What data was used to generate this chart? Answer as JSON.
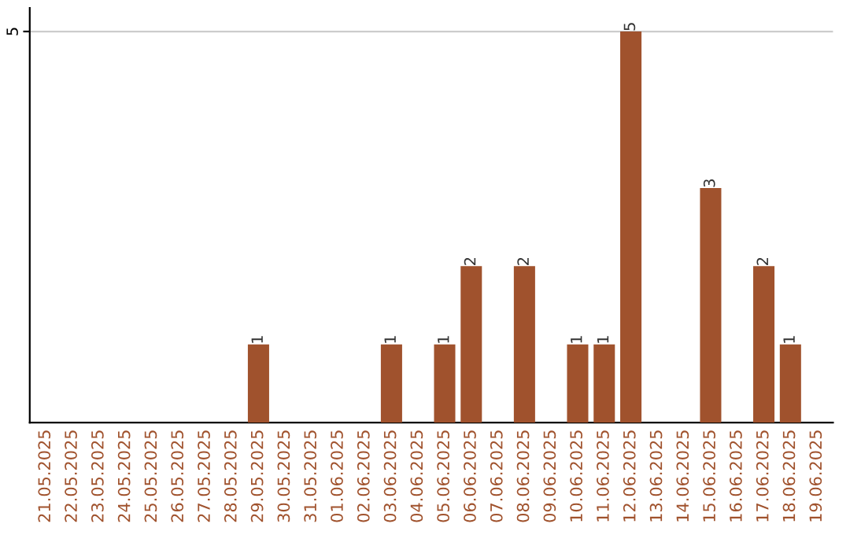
{
  "chart_data": {
    "type": "bar",
    "categories": [
      "21.05.2025",
      "22.05.2025",
      "23.05.2025",
      "24.05.2025",
      "25.05.2025",
      "26.05.2025",
      "27.05.2025",
      "28.05.2025",
      "29.05.2025",
      "30.05.2025",
      "31.05.2025",
      "01.06.2025",
      "02.06.2025",
      "03.06.2025",
      "04.06.2025",
      "05.06.2025",
      "06.06.2025",
      "07.06.2025",
      "08.06.2025",
      "09.06.2025",
      "10.06.2025",
      "11.06.2025",
      "12.06.2025",
      "13.06.2025",
      "14.06.2025",
      "15.06.2025",
      "16.06.2025",
      "17.06.2025",
      "18.06.2025",
      "19.06.2025"
    ],
    "values": [
      0,
      0,
      0,
      0,
      0,
      0,
      0,
      0,
      1,
      0,
      0,
      0,
      0,
      1,
      0,
      1,
      2,
      0,
      2,
      0,
      1,
      1,
      5,
      0,
      0,
      3,
      0,
      2,
      1,
      0
    ],
    "value_labels": [
      null,
      null,
      null,
      null,
      null,
      null,
      null,
      null,
      "1",
      null,
      null,
      null,
      null,
      "1",
      null,
      "1",
      "2",
      null,
      "2",
      null,
      "1",
      "1",
      "5",
      null,
      null,
      "3",
      null,
      "2",
      "1",
      null
    ],
    "color": "#a0522d",
    "ylim": [
      0,
      5.3
    ],
    "yticks": [
      5
    ],
    "grid": "y"
  }
}
